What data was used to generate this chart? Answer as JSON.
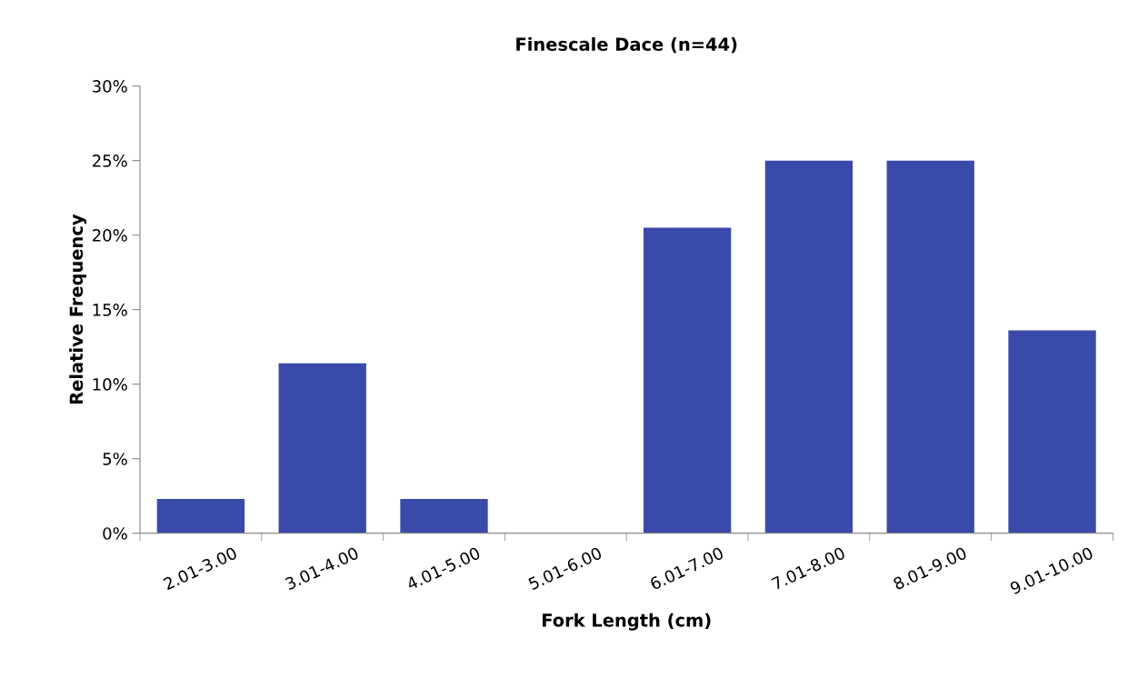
{
  "chart_data": {
    "type": "bar",
    "title": "Finescale Dace (n=44)",
    "xlabel": "Fork Length (cm)",
    "ylabel": "Relative Frequency",
    "categories": [
      "2.01-3.00",
      "3.01-4.00",
      "4.01-5.00",
      "5.01-6.00",
      "6.01-7.00",
      "7.01-8.00",
      "8.01-9.00",
      "9.01-10.00"
    ],
    "values": [
      2.3,
      11.4,
      2.3,
      0,
      20.5,
      25,
      25,
      13.6
    ],
    "color": "#3a4aaa",
    "ylim": [
      0,
      30
    ],
    "yticks": [
      {
        "value": 0,
        "label": "0%"
      },
      {
        "value": 5,
        "label": "5%"
      },
      {
        "value": 10,
        "label": "10%"
      },
      {
        "value": 15,
        "label": "15%"
      },
      {
        "value": 20,
        "label": "20%"
      },
      {
        "value": 25,
        "label": "25%"
      },
      {
        "value": 30,
        "label": "30%"
      }
    ],
    "grid": false,
    "legend": false
  }
}
